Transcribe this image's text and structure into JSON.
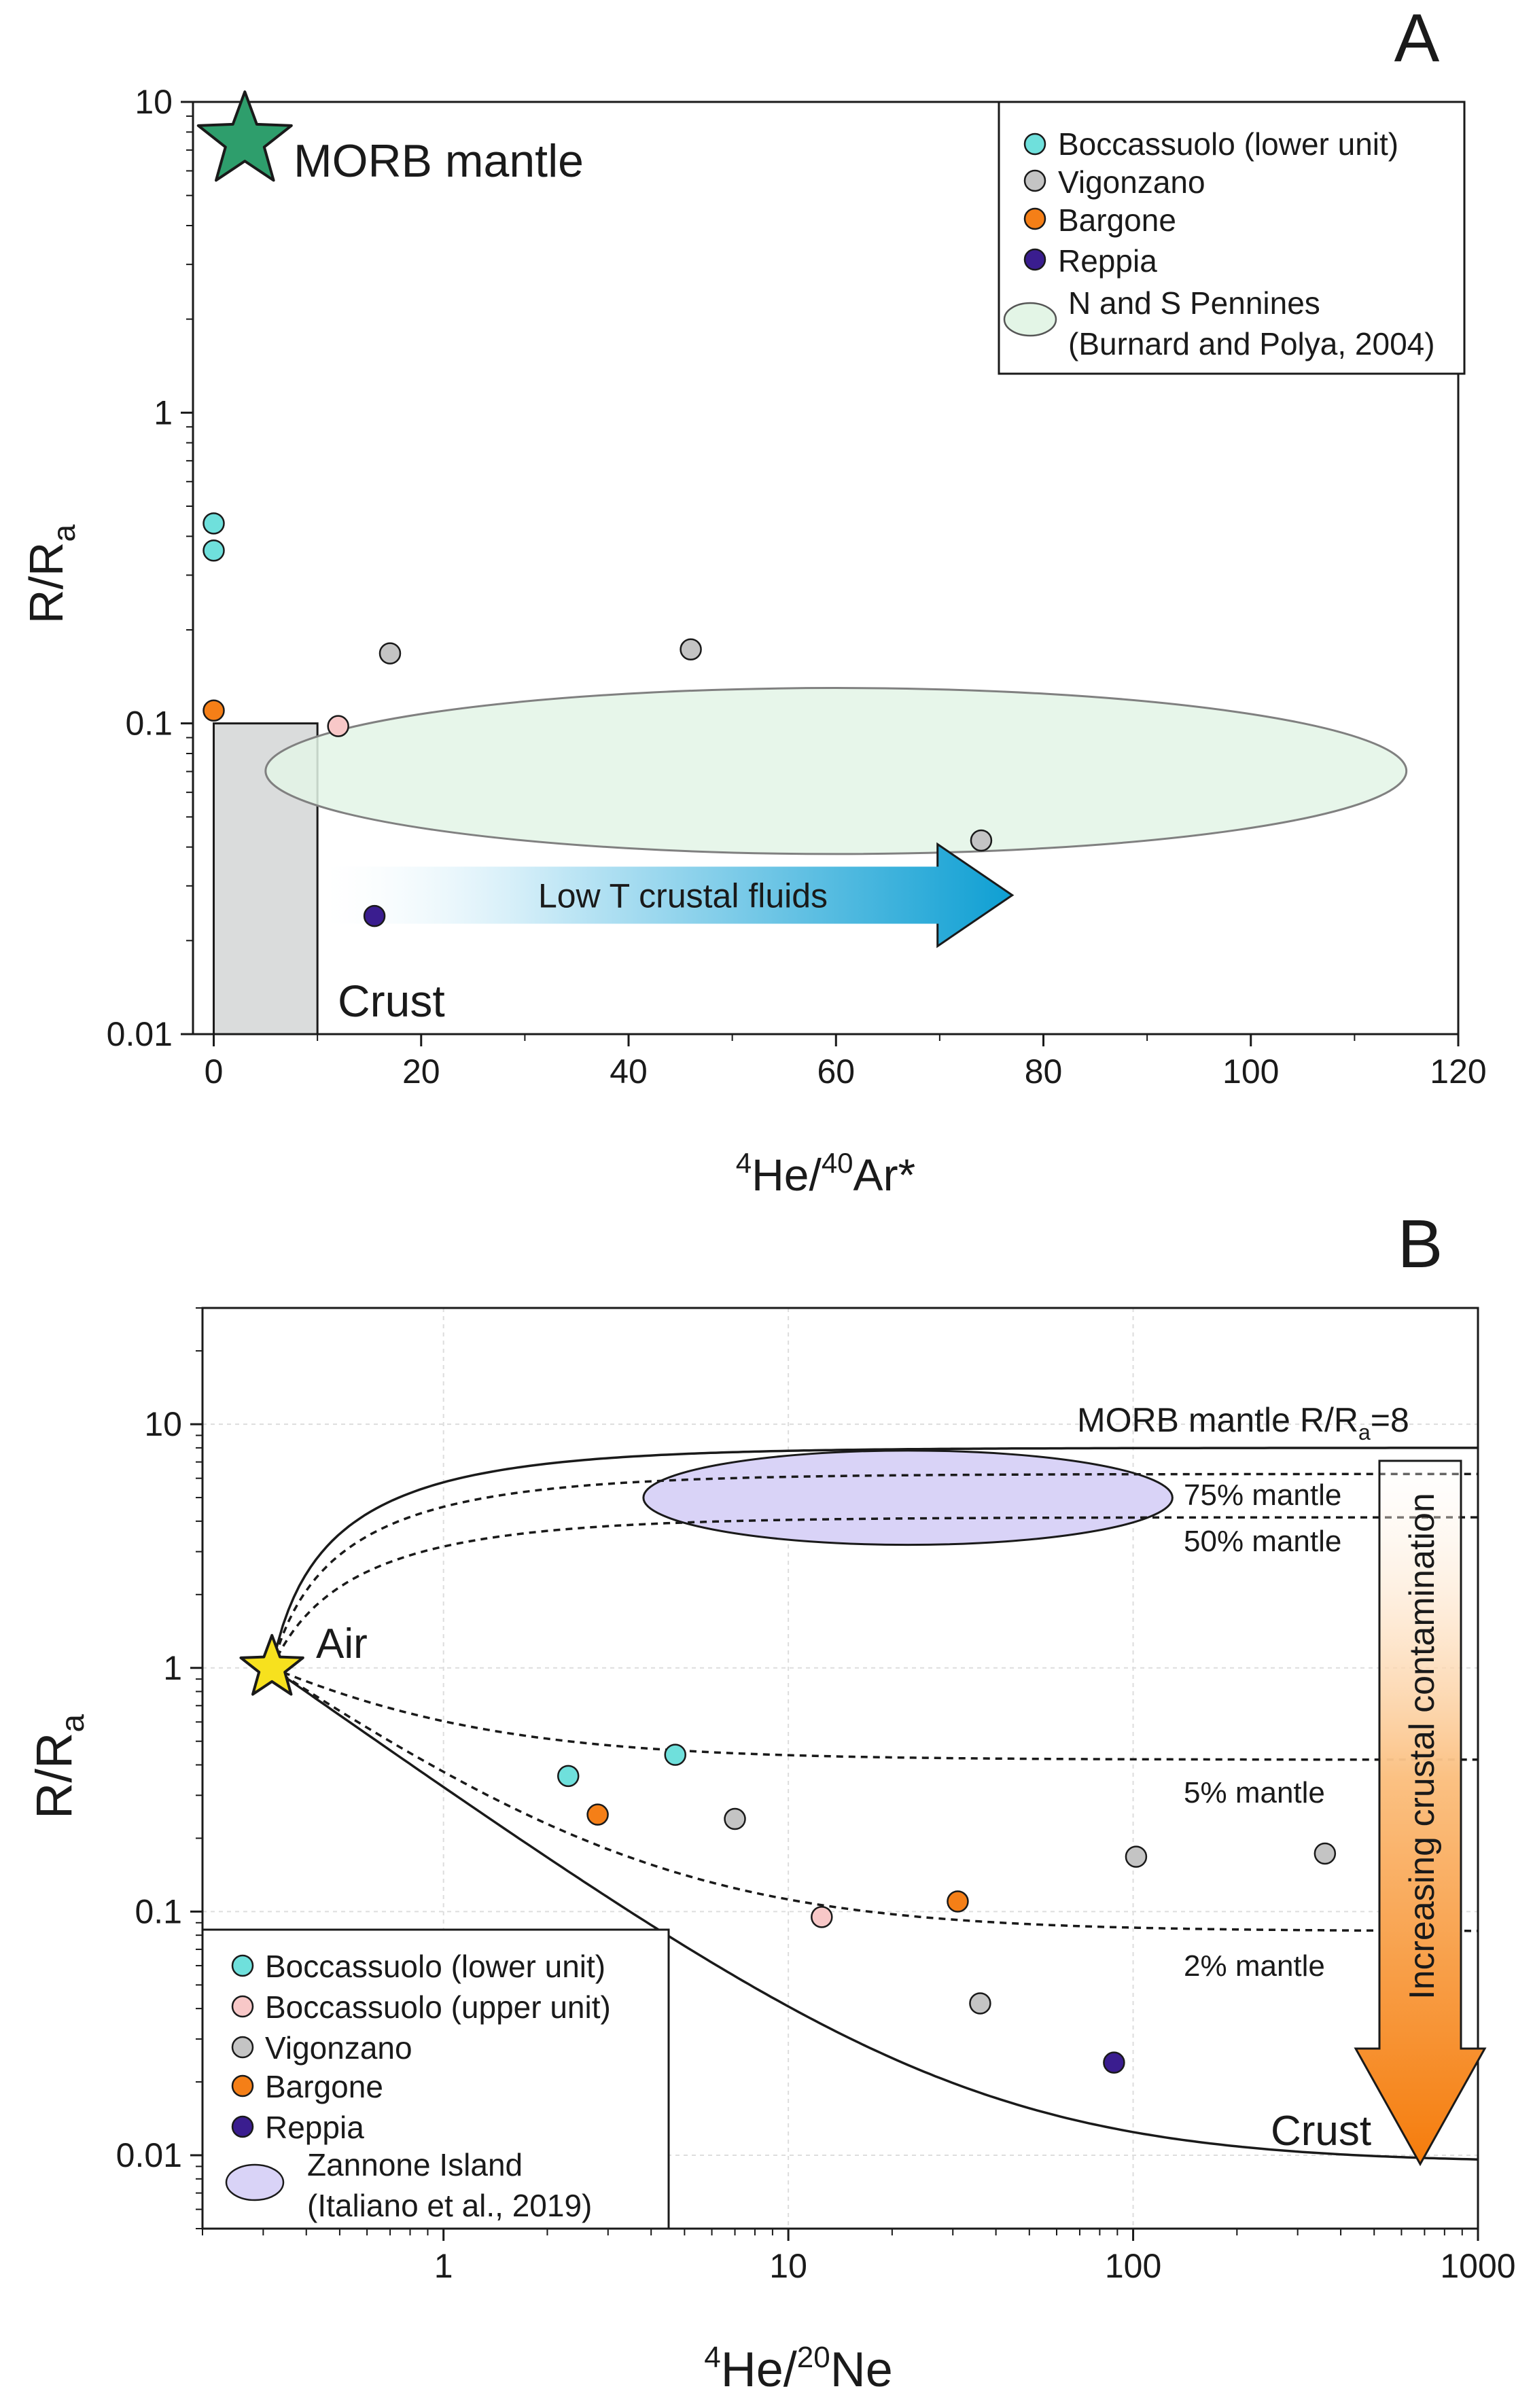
{
  "colors": {
    "boccassuolo_lower": "#6fe0dc",
    "boccassuolo_upper": "#f8c8c8",
    "vigonzano": "#c4c4c4",
    "bargone": "#f57f17",
    "reppia": "#3a1d8f",
    "pennines_fill": "#e3f5e6",
    "zannone_fill": "#d9d3f7",
    "crust_box": "#dadcdc",
    "morb_star": "#2e9e6c",
    "air_star": "#f7e11e",
    "blue_arrow": "#0fa4d6",
    "orange_arrow": "#f58a1e"
  },
  "chart_data": [
    {
      "panel": "A",
      "type": "scatter",
      "xscale": "linear",
      "yscale": "log",
      "xlabel_base": "He/",
      "xlabel_sup1": "4",
      "xlabel_sup2": "40",
      "xlabel_tail": "Ar*",
      "ylabel_main": "R/R",
      "ylabel_sub": "a",
      "xlim": [
        -2,
        120
      ],
      "ylim": [
        0.01,
        10
      ],
      "xticks": [
        0,
        20,
        40,
        60,
        80,
        100,
        120
      ],
      "xtick_labels": [
        "0",
        "20",
        "40",
        "60",
        "80",
        "100",
        "120"
      ],
      "yticks": [
        0.01,
        0.1,
        1,
        10
      ],
      "ytick_labels": [
        "0.01",
        "0.1",
        "1",
        "10"
      ],
      "series": [
        {
          "name": "Boccassuolo (lower unit)",
          "key": "boccassuolo_lower",
          "points": [
            [
              0,
              0.44
            ],
            [
              0,
              0.36
            ]
          ]
        },
        {
          "name": "Boccassuolo (upper unit)",
          "key": "boccassuolo_upper",
          "points": [
            [
              12,
              0.098
            ]
          ]
        },
        {
          "name": "Vigonzano",
          "key": "vigonzano",
          "points": [
            [
              17,
              0.168
            ],
            [
              46,
              0.173
            ],
            [
              74,
              0.042
            ]
          ]
        },
        {
          "name": "Bargone",
          "key": "bargone",
          "points": [
            [
              0,
              0.11
            ]
          ]
        },
        {
          "name": "Reppia",
          "key": "reppia",
          "points": [
            [
              15.5,
              0.024
            ]
          ]
        }
      ],
      "field": {
        "name": "N and S Pennines",
        "cx": 60,
        "cy": 0.07,
        "rx": 55,
        "ymin": 0.038,
        "ymax": 0.13
      },
      "crust_box": {
        "x0": 0,
        "x1": 10,
        "y0": 0.01,
        "y1": 0.1
      },
      "morb_star": {
        "x": 3,
        "y": 7.5
      },
      "arrow": {
        "x0": 10,
        "x1": 77,
        "y": 0.028,
        "label": "Low T crustal fluids"
      },
      "annotations": {
        "morb": "MORB mantle",
        "crust": "Crust"
      },
      "legend": [
        {
          "label": "Boccassuolo (lower unit)",
          "key": "boccassuolo_lower",
          "kind": "dot"
        },
        {
          "label": "Vigonzano",
          "key": "vigonzano",
          "kind": "dot"
        },
        {
          "label": "Bargone",
          "key": "bargone",
          "kind": "dot"
        },
        {
          "label": "Reppia",
          "key": "reppia",
          "kind": "dot"
        },
        {
          "label": "N and S Pennines",
          "label2": "(Burnard and Polya, 2004)",
          "key": "pennines_fill",
          "kind": "ellipse"
        }
      ]
    },
    {
      "panel": "B",
      "type": "scatter",
      "xscale": "log",
      "yscale": "log",
      "xlabel_base": "He/",
      "xlabel_sup1": "4",
      "xlabel_sup2": "20",
      "xlabel_tail": "Ne",
      "ylabel_main": "R/R",
      "ylabel_sub": "a",
      "xlim": [
        0.2,
        1000
      ],
      "ylim": [
        0.005,
        30
      ],
      "xticks": [
        1,
        10,
        100,
        1000
      ],
      "xtick_labels": [
        "1",
        "10",
        "100",
        "1000"
      ],
      "yticks": [
        0.01,
        0.1,
        1,
        10
      ],
      "ytick_labels": [
        "0.01",
        "0.1",
        "1",
        "10"
      ],
      "series": [
        {
          "name": "Boccassuolo (lower unit)",
          "key": "boccassuolo_lower",
          "points": [
            [
              2.3,
              0.36
            ],
            [
              4.7,
              0.44
            ]
          ]
        },
        {
          "name": "Boccassuolo (upper unit)",
          "key": "boccassuolo_upper",
          "points": [
            [
              12.5,
              0.095
            ]
          ]
        },
        {
          "name": "Vigonzano",
          "key": "vigonzano",
          "points": [
            [
              7,
              0.24
            ],
            [
              36,
              0.042
            ],
            [
              102,
              0.168
            ],
            [
              360,
              0.173
            ]
          ]
        },
        {
          "name": "Bargone",
          "key": "bargone",
          "points": [
            [
              2.8,
              0.25
            ],
            [
              31,
              0.11
            ]
          ]
        },
        {
          "name": "Reppia",
          "key": "reppia",
          "points": [
            [
              88,
              0.024
            ]
          ]
        }
      ],
      "mixing_lines": [
        {
          "name": "MORB mantle",
          "end": 8,
          "dashed": false
        },
        {
          "name": "75% mantle",
          "end": 6.25,
          "dashed": true
        },
        {
          "name": "50% mantle",
          "end": 4.15,
          "dashed": true
        },
        {
          "name": "5% mantle",
          "end": 0.42,
          "dashed": true
        },
        {
          "name": "2% mantle",
          "end": 0.083,
          "dashed": true
        },
        {
          "name": "Crust",
          "end": 0.0093,
          "dashed": false
        }
      ],
      "air_star": {
        "x": 0.318,
        "y": 1
      },
      "field": {
        "name": "Zannone Island",
        "xmin": 3.8,
        "xmax": 130,
        "ymin": 3.2,
        "ymax": 7.8
      },
      "labels": {
        "morb_main": "MORB mantle R/R",
        "morb_sub": "a",
        "morb_tail": "=8",
        "m75": "75% mantle",
        "m50": "50% mantle",
        "m5": "5% mantle",
        "m2": "2% mantle",
        "crust": "Crust",
        "air": "Air",
        "arrow": "Increasing crustal contamination"
      },
      "legend": [
        {
          "label": "Boccassuolo (lower unit)",
          "key": "boccassuolo_lower",
          "kind": "dot"
        },
        {
          "label": "Boccassuolo (upper unit)",
          "key": "boccassuolo_upper",
          "kind": "dot"
        },
        {
          "label": "Vigonzano",
          "key": "vigonzano",
          "kind": "dot"
        },
        {
          "label": "Bargone",
          "key": "bargone",
          "kind": "dot"
        },
        {
          "label": "Reppia",
          "key": "reppia",
          "kind": "dot"
        },
        {
          "label": "Zannone Island",
          "label2": "(Italiano et al., 2019)",
          "key": "zannone_fill",
          "kind": "ellipse"
        }
      ]
    }
  ],
  "panel_labels": [
    "A",
    "B"
  ]
}
